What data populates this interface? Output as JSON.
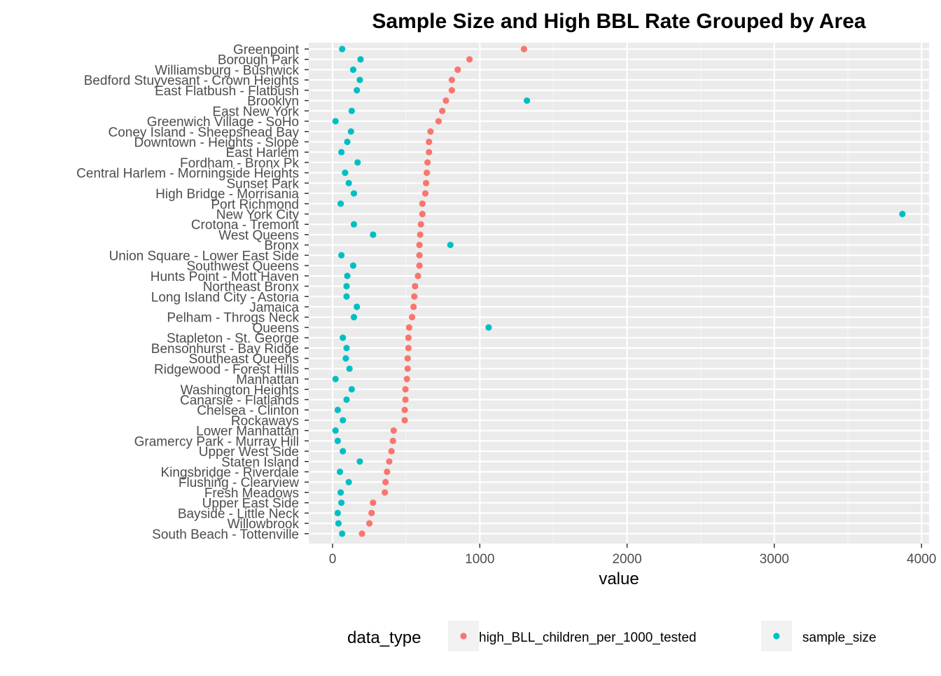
{
  "chart_data": {
    "type": "scatter",
    "title": "Sample Size and High BBL Rate Grouped by Area",
    "xlabel": "value",
    "ylabel": "",
    "xlim": [
      -150,
      4030
    ],
    "xticks": [
      0,
      1000,
      2000,
      3000,
      4000
    ],
    "grid": true,
    "legend_position": "bottom",
    "legend_title": "data_type",
    "categories": [
      "Greenpoint",
      "Borough Park",
      "Williamsburg - Bushwick",
      "Bedford Stuyvesant - Crown Heights",
      "East Flatbush - Flatbush",
      "Brooklyn",
      "East New York",
      "Greenwich Village - SoHo",
      "Coney Island - Sheepshead Bay",
      "Downtown - Heights - Slope",
      "East Harlem",
      "Fordham - Bronx Pk",
      "Central Harlem - Morningside Heights",
      "Sunset Park",
      "High Bridge - Morrisania",
      "Port Richmond",
      "New York City",
      "Crotona - Tremont",
      "West Queens",
      "Bronx",
      "Union Square - Lower East Side",
      "Southwest Queens",
      "Hunts Point - Mott Haven",
      "Northeast Bronx",
      "Long Island City - Astoria",
      "Jamaica",
      "Pelham - Throgs Neck",
      "Queens",
      "Stapleton - St. George",
      "Bensonhurst - Bay Ridge",
      "Southeast Queens",
      "Ridgewood - Forest Hills",
      "Manhattan",
      "Washington Heights",
      "Canarsie - Flatlands",
      "Chelsea - Clinton",
      "Rockaways",
      "Lower Manhattan",
      "Gramercy Park - Murray Hill",
      "Upper West Side",
      "Staten Island",
      "Kingsbridge - Riverdale",
      "Flushing - Clearview",
      "Fresh Meadows",
      "Upper East Side",
      "Bayside - Little Neck",
      "Willowbrook",
      "South Beach - Tottenville"
    ],
    "series": [
      {
        "name": "high_BLL_children_per_1000_tested",
        "color": "#F8766D",
        "values": [
          1300,
          930,
          850,
          810,
          810,
          770,
          745,
          720,
          665,
          655,
          655,
          645,
          640,
          635,
          630,
          610,
          610,
          600,
          595,
          590,
          590,
          590,
          580,
          560,
          555,
          550,
          540,
          520,
          515,
          515,
          510,
          510,
          505,
          495,
          495,
          490,
          490,
          415,
          410,
          400,
          385,
          370,
          360,
          355,
          275,
          265,
          250,
          200
        ]
      },
      {
        "name": "sample_size",
        "color": "#00BFC4",
        "values": [
          65,
          190,
          140,
          185,
          165,
          1320,
          130,
          20,
          125,
          100,
          60,
          170,
          85,
          110,
          145,
          55,
          3870,
          145,
          275,
          800,
          60,
          140,
          100,
          95,
          95,
          165,
          145,
          1060,
          70,
          95,
          90,
          115,
          20,
          130,
          95,
          35,
          70,
          20,
          35,
          70,
          185,
          50,
          110,
          55,
          60,
          35,
          40,
          65
        ]
      }
    ]
  }
}
